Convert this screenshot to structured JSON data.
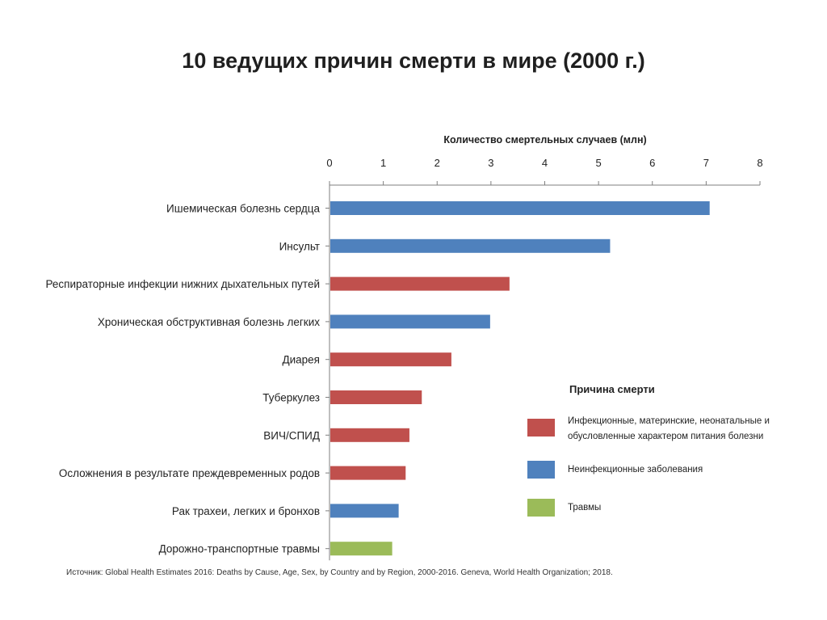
{
  "chart_data": {
    "type": "bar",
    "orientation": "horizontal",
    "title": "10 ведущих причин смерти в мире (2000 г.)",
    "xlabel": "Количество смертельных случаев (млн)",
    "xlim": [
      0,
      8
    ],
    "xticks": [
      0,
      1,
      2,
      3,
      4,
      5,
      6,
      7,
      8
    ],
    "grid": false,
    "legend_position": "right",
    "categories": [
      "Ишемическая болезнь сердца",
      "Инсульт",
      "Респираторные инфекции нижних дыхательных путей",
      "Хроническая обструктивная болезнь легких",
      "Диарея",
      "Туберкулез",
      "ВИЧ/СПИД",
      "Осложнения в результате преждевременных родов",
      "Рак трахеи, легких и бронхов",
      "Дорожно-транспортные травмы"
    ],
    "values": [
      7.05,
      5.2,
      3.33,
      2.97,
      2.25,
      1.7,
      1.47,
      1.4,
      1.27,
      1.15
    ],
    "groups": [
      "noncommunicable",
      "noncommunicable",
      "communicable",
      "noncommunicable",
      "communicable",
      "communicable",
      "communicable",
      "communicable",
      "noncommunicable",
      "injuries"
    ],
    "legend": {
      "title": "Причина смерти",
      "items": [
        {
          "key": "communicable",
          "lines": [
            "Инфекционные, материнские, неонатальные и",
            "обусловленные характером питания болезни"
          ],
          "color": "#c0504d"
        },
        {
          "key": "noncommunicable",
          "lines": [
            "Неинфекционные заболевания"
          ],
          "color": "#4f81bd"
        },
        {
          "key": "injuries",
          "lines": [
            "Травмы"
          ],
          "color": "#9bbb59"
        }
      ]
    },
    "source": "Источник: Global Health Estimates 2016: Deaths by Cause, Age, Sex, by Country and by Region, 2000-2016. Geneva, World Health Organization; 2018."
  }
}
